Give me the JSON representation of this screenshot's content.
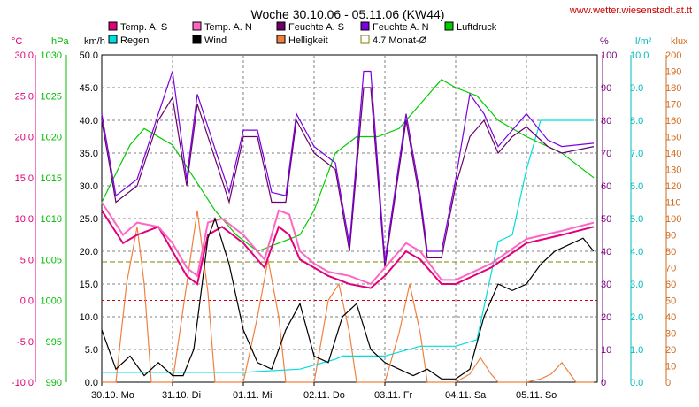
{
  "chart_data": {
    "type": "line",
    "title": "Woche 30.10.06 - 05.11.06 (KW44)",
    "source_url": "www.wetter.wiesenstadt.at.tt",
    "x_labels": [
      "30.10. Mo",
      "31.10. Di",
      "01.11. Mi",
      "02.11. Do",
      "03.11. Fr",
      "04.11. Sa",
      "05.11. So"
    ],
    "x_range": [
      0,
      7
    ],
    "axes": [
      {
        "id": "temp",
        "unit": "°C",
        "color": "#e0007a",
        "range": [
          -10,
          30
        ],
        "ticks": [
          "30.0",
          "25.0",
          "20.0",
          "15.0",
          "10.0",
          "5.0",
          "0.0",
          "-5.0",
          "-10.0"
        ]
      },
      {
        "id": "hpa",
        "unit": "hPa",
        "color": "#00bb00",
        "range": [
          990,
          1030
        ],
        "ticks": [
          "1030",
          "1025",
          "1020",
          "1015",
          "1010",
          "1005",
          "1000",
          "995",
          "990"
        ]
      },
      {
        "id": "wind",
        "unit": "km/h",
        "color": "#000000",
        "range": [
          0,
          50
        ],
        "ticks": [
          "50.0",
          "45.0",
          "40.0",
          "35.0",
          "30.0",
          "25.0",
          "20.0",
          "15.0",
          "10.0",
          "5.0",
          "0.0"
        ]
      },
      {
        "id": "hum",
        "unit": "%",
        "color": "#7a007a",
        "range": [
          0,
          100
        ],
        "ticks": [
          "100",
          "90",
          "80",
          "70",
          "60",
          "50",
          "40",
          "30",
          "20",
          "10",
          "0"
        ]
      },
      {
        "id": "rain",
        "unit": "l/m²",
        "color": "#00bbbb",
        "range": [
          0,
          10
        ],
        "ticks": [
          "10.0",
          "9.0",
          "8.0",
          "7.0",
          "6.0",
          "5.0",
          "4.0",
          "3.0",
          "2.0",
          "1.0",
          "0.0"
        ]
      },
      {
        "id": "klux",
        "unit": "klux",
        "color": "#d2691e",
        "range": [
          0,
          200
        ],
        "ticks": [
          "200",
          "190",
          "180",
          "170",
          "160",
          "150",
          "140",
          "130",
          "120",
          "110",
          "100",
          "90",
          "80",
          "70",
          "60",
          "50",
          "40",
          "30",
          "20",
          "10",
          "0"
        ]
      }
    ],
    "legend": [
      {
        "name": "Temp. A. S",
        "color": "#e0007a"
      },
      {
        "name": "Temp. A. N",
        "color": "#ff66c4"
      },
      {
        "name": "Feuchte A. S",
        "color": "#6a006a"
      },
      {
        "name": "Feuchte A. N",
        "color": "#7a00e0"
      },
      {
        "name": "Luftdruck",
        "color": "#00cc00"
      },
      {
        "name": "Regen",
        "color": "#00dddd"
      },
      {
        "name": "Wind",
        "color": "#000000"
      },
      {
        "name": "Helligkeit",
        "color": "#f08040"
      },
      {
        "name": "4.7 Monat-Ø",
        "color": "#808000"
      }
    ],
    "monthly_avg_temp": 4.7,
    "series": [
      {
        "name": "Temp. A. S",
        "axis": "temp",
        "color": "#e0007a",
        "x": [
          0,
          0.3,
          0.5,
          0.8,
          1.0,
          1.2,
          1.35,
          1.5,
          1.7,
          2.0,
          2.3,
          2.5,
          2.65,
          2.8,
          3.0,
          3.2,
          3.5,
          3.8,
          4.0,
          4.3,
          4.5,
          4.8,
          5.0,
          5.5,
          6.0,
          6.5,
          6.95
        ],
        "y": [
          11,
          7,
          8,
          9,
          6,
          3,
          2,
          8,
          9,
          7,
          4,
          9,
          8,
          5,
          4,
          3,
          2,
          1.5,
          3,
          6,
          5,
          2,
          2,
          4,
          7,
          8,
          9
        ]
      },
      {
        "name": "Temp. A. N",
        "axis": "temp",
        "color": "#ff66c4",
        "x": [
          0,
          0.3,
          0.5,
          0.8,
          1.0,
          1.2,
          1.35,
          1.5,
          1.7,
          2.0,
          2.3,
          2.5,
          2.65,
          2.8,
          3.0,
          3.2,
          3.5,
          3.8,
          4.0,
          4.3,
          4.5,
          4.8,
          5.0,
          5.5,
          6.0,
          6.5,
          6.95
        ],
        "y": [
          12,
          8,
          9.5,
          9,
          7,
          4,
          3,
          9.5,
          10,
          8,
          5,
          11,
          10.5,
          6,
          4.5,
          3.5,
          3,
          2,
          4,
          7,
          6,
          2.5,
          2.5,
          4.5,
          7.5,
          8.5,
          9.5
        ]
      },
      {
        "name": "Feuchte A. S",
        "axis": "hum",
        "color": "#6a006a",
        "x": [
          0,
          0.2,
          0.5,
          0.8,
          1.0,
          1.2,
          1.35,
          1.5,
          1.8,
          2.0,
          2.2,
          2.4,
          2.6,
          2.75,
          3.0,
          3.3,
          3.5,
          3.7,
          3.8,
          4.0,
          4.3,
          4.5,
          4.6,
          4.8,
          5.0,
          5.2,
          5.4,
          5.6,
          5.8,
          6.0,
          6.3,
          6.5,
          6.95
        ],
        "y": [
          80,
          55,
          60,
          80,
          87,
          60,
          85,
          75,
          55,
          75,
          75,
          55,
          55,
          80,
          70,
          65,
          40,
          90,
          90,
          35,
          80,
          55,
          38,
          38,
          60,
          75,
          80,
          70,
          75,
          78,
          72,
          70,
          72
        ]
      },
      {
        "name": "Feuchte A. N",
        "axis": "hum",
        "color": "#7a00e0",
        "x": [
          0,
          0.2,
          0.5,
          0.8,
          1.0,
          1.2,
          1.35,
          1.5,
          1.8,
          2.0,
          2.2,
          2.4,
          2.6,
          2.75,
          3.0,
          3.3,
          3.5,
          3.7,
          3.8,
          4.0,
          4.3,
          4.5,
          4.6,
          4.8,
          5.0,
          5.2,
          5.4,
          5.6,
          5.8,
          6.0,
          6.3,
          6.5,
          6.95
        ],
        "y": [
          82,
          57,
          62,
          82,
          95,
          62,
          88,
          78,
          58,
          77,
          77,
          58,
          57,
          82,
          72,
          67,
          42,
          95,
          95,
          37,
          82,
          57,
          40,
          40,
          62,
          88,
          82,
          72,
          77,
          82,
          74,
          72,
          73
        ]
      },
      {
        "name": "Luftdruck",
        "axis": "hpa",
        "color": "#00cc00",
        "x": [
          0,
          0.4,
          0.6,
          1.0,
          1.3,
          1.6,
          1.9,
          2.2,
          2.5,
          2.8,
          3.0,
          3.3,
          3.6,
          3.9,
          4.2,
          4.5,
          4.8,
          5.0,
          5.3,
          5.6,
          6.0,
          6.5,
          6.95
        ],
        "y": [
          1012,
          1019,
          1021,
          1019,
          1015,
          1011,
          1008,
          1006,
          1007,
          1008,
          1011,
          1018,
          1020,
          1020,
          1021,
          1024,
          1027,
          1026,
          1025,
          1022,
          1020,
          1018,
          1015
        ]
      },
      {
        "name": "Regen",
        "axis": "rain",
        "color": "#00dddd",
        "x": [
          0,
          1.0,
          2.0,
          2.8,
          3.3,
          3.4,
          4.0,
          4.5,
          5.0,
          5.3,
          5.6,
          5.8,
          6.0,
          6.2,
          6.4,
          6.95
        ],
        "y": [
          0.3,
          0.3,
          0.3,
          0.4,
          0.7,
          0.8,
          0.8,
          1.1,
          1.1,
          1.3,
          4.3,
          4.5,
          6.5,
          8.0,
          8.0,
          8.0
        ]
      },
      {
        "name": "Wind",
        "axis": "wind",
        "color": "#000000",
        "x": [
          0,
          0.2,
          0.4,
          0.6,
          0.8,
          1.0,
          1.15,
          1.3,
          1.5,
          1.6,
          1.8,
          2.0,
          2.2,
          2.4,
          2.6,
          2.8,
          3.0,
          3.2,
          3.4,
          3.6,
          3.8,
          4.0,
          4.2,
          4.4,
          4.6,
          4.8,
          5.0,
          5.2,
          5.4,
          5.6,
          5.8,
          6.0,
          6.2,
          6.4,
          6.6,
          6.8,
          6.95
        ],
        "y": [
          8,
          2,
          4,
          1,
          3,
          1,
          1,
          5,
          22,
          25,
          18,
          8,
          3,
          2,
          8,
          12,
          4,
          3,
          10,
          12,
          5,
          3,
          2,
          1,
          2,
          0.5,
          0.5,
          2,
          10,
          15,
          14,
          15,
          18,
          20,
          21,
          22,
          20
        ]
      },
      {
        "name": "Helligkeit",
        "axis": "klux",
        "color": "#f08040",
        "x": [
          0,
          0.2,
          0.35,
          0.5,
          0.6,
          0.7,
          0.9,
          1.0,
          1.2,
          1.35,
          1.5,
          1.6,
          1.7,
          1.9,
          2.0,
          2.2,
          2.35,
          2.5,
          2.6,
          2.7,
          2.9,
          3.0,
          3.2,
          3.35,
          3.5,
          3.6,
          3.7,
          3.9,
          4.0,
          4.2,
          4.35,
          4.5,
          4.6,
          4.7,
          4.9,
          5.0,
          5.2,
          5.35,
          5.5,
          5.6,
          5.7,
          5.9,
          6.0,
          6.2,
          6.35,
          6.5,
          6.6,
          6.7,
          6.95
        ],
        "y": [
          0,
          0,
          60,
          95,
          60,
          0,
          0,
          0,
          60,
          105,
          55,
          0,
          0,
          0,
          0,
          40,
          75,
          40,
          0,
          0,
          0,
          0,
          50,
          60,
          30,
          0,
          0,
          0,
          0,
          30,
          60,
          30,
          0,
          0,
          0,
          0,
          5,
          15,
          5,
          0,
          0,
          0,
          0,
          2,
          5,
          12,
          6,
          0,
          0
        ]
      }
    ]
  }
}
